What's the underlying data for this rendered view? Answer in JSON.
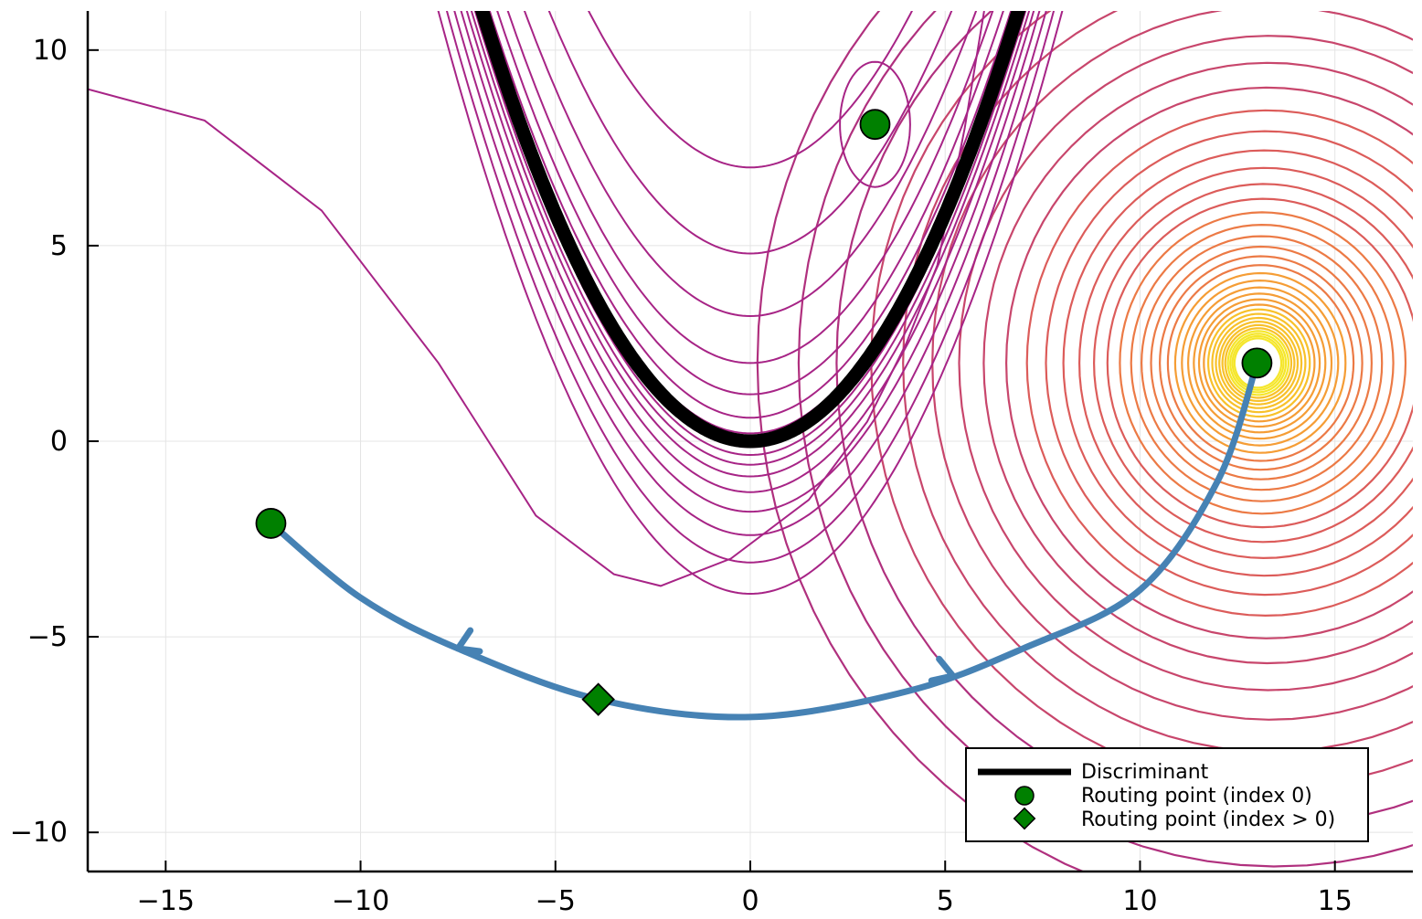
{
  "chart_data": {
    "type": "contour",
    "xlim": [
      -17,
      17
    ],
    "ylim": [
      -11,
      11
    ],
    "x_ticks": [
      -15,
      -10,
      -5,
      0,
      5,
      10,
      15
    ],
    "y_ticks": [
      -10,
      -5,
      0,
      5,
      10
    ],
    "x_tick_labels": [
      "−15",
      "−10",
      "−5",
      "0",
      "5",
      "10",
      "15"
    ],
    "y_tick_labels": [
      "−10",
      "−5",
      "0",
      "5",
      "10"
    ],
    "grid": true,
    "legend_position": "bottom-right",
    "discriminant": {
      "label": "Discriminant",
      "color": "#000000",
      "curve": "y = x^2 / 4.3"
    },
    "routing_points_index0": {
      "label": "Routing point (index 0)",
      "color": "#008000",
      "marker": "circle",
      "points": [
        [
          -12.3,
          -2.1
        ],
        [
          3.2,
          8.1
        ],
        [
          13.0,
          2.0
        ]
      ]
    },
    "routing_points_index_gt0": {
      "label": "Routing point (index > 0)",
      "color": "#008000",
      "marker": "diamond",
      "points": [
        [
          -3.9,
          -6.6
        ]
      ]
    },
    "path": {
      "color": "#4682b4",
      "points": [
        [
          13.0,
          2.0
        ],
        [
          12.0,
          -1.0
        ],
        [
          10.0,
          -3.8
        ],
        [
          7.0,
          -5.3
        ],
        [
          4.0,
          -6.4
        ],
        [
          0.0,
          -7.05
        ],
        [
          -3.9,
          -6.6
        ],
        [
          -7.5,
          -5.3
        ],
        [
          -10.0,
          -4.0
        ],
        [
          -12.3,
          -2.1
        ]
      ],
      "arrows": [
        [
          5.2,
          -6.0
        ],
        [
          -7.5,
          -5.3
        ]
      ]
    },
    "contour_palette": [
      "#9b1a8c",
      "#b0307e",
      "#c8466c",
      "#dc5c5a",
      "#ec7a45",
      "#f59d35",
      "#f8c12a",
      "#f5e62b"
    ],
    "center_peak": [
      13.0,
      2.0
    ]
  }
}
